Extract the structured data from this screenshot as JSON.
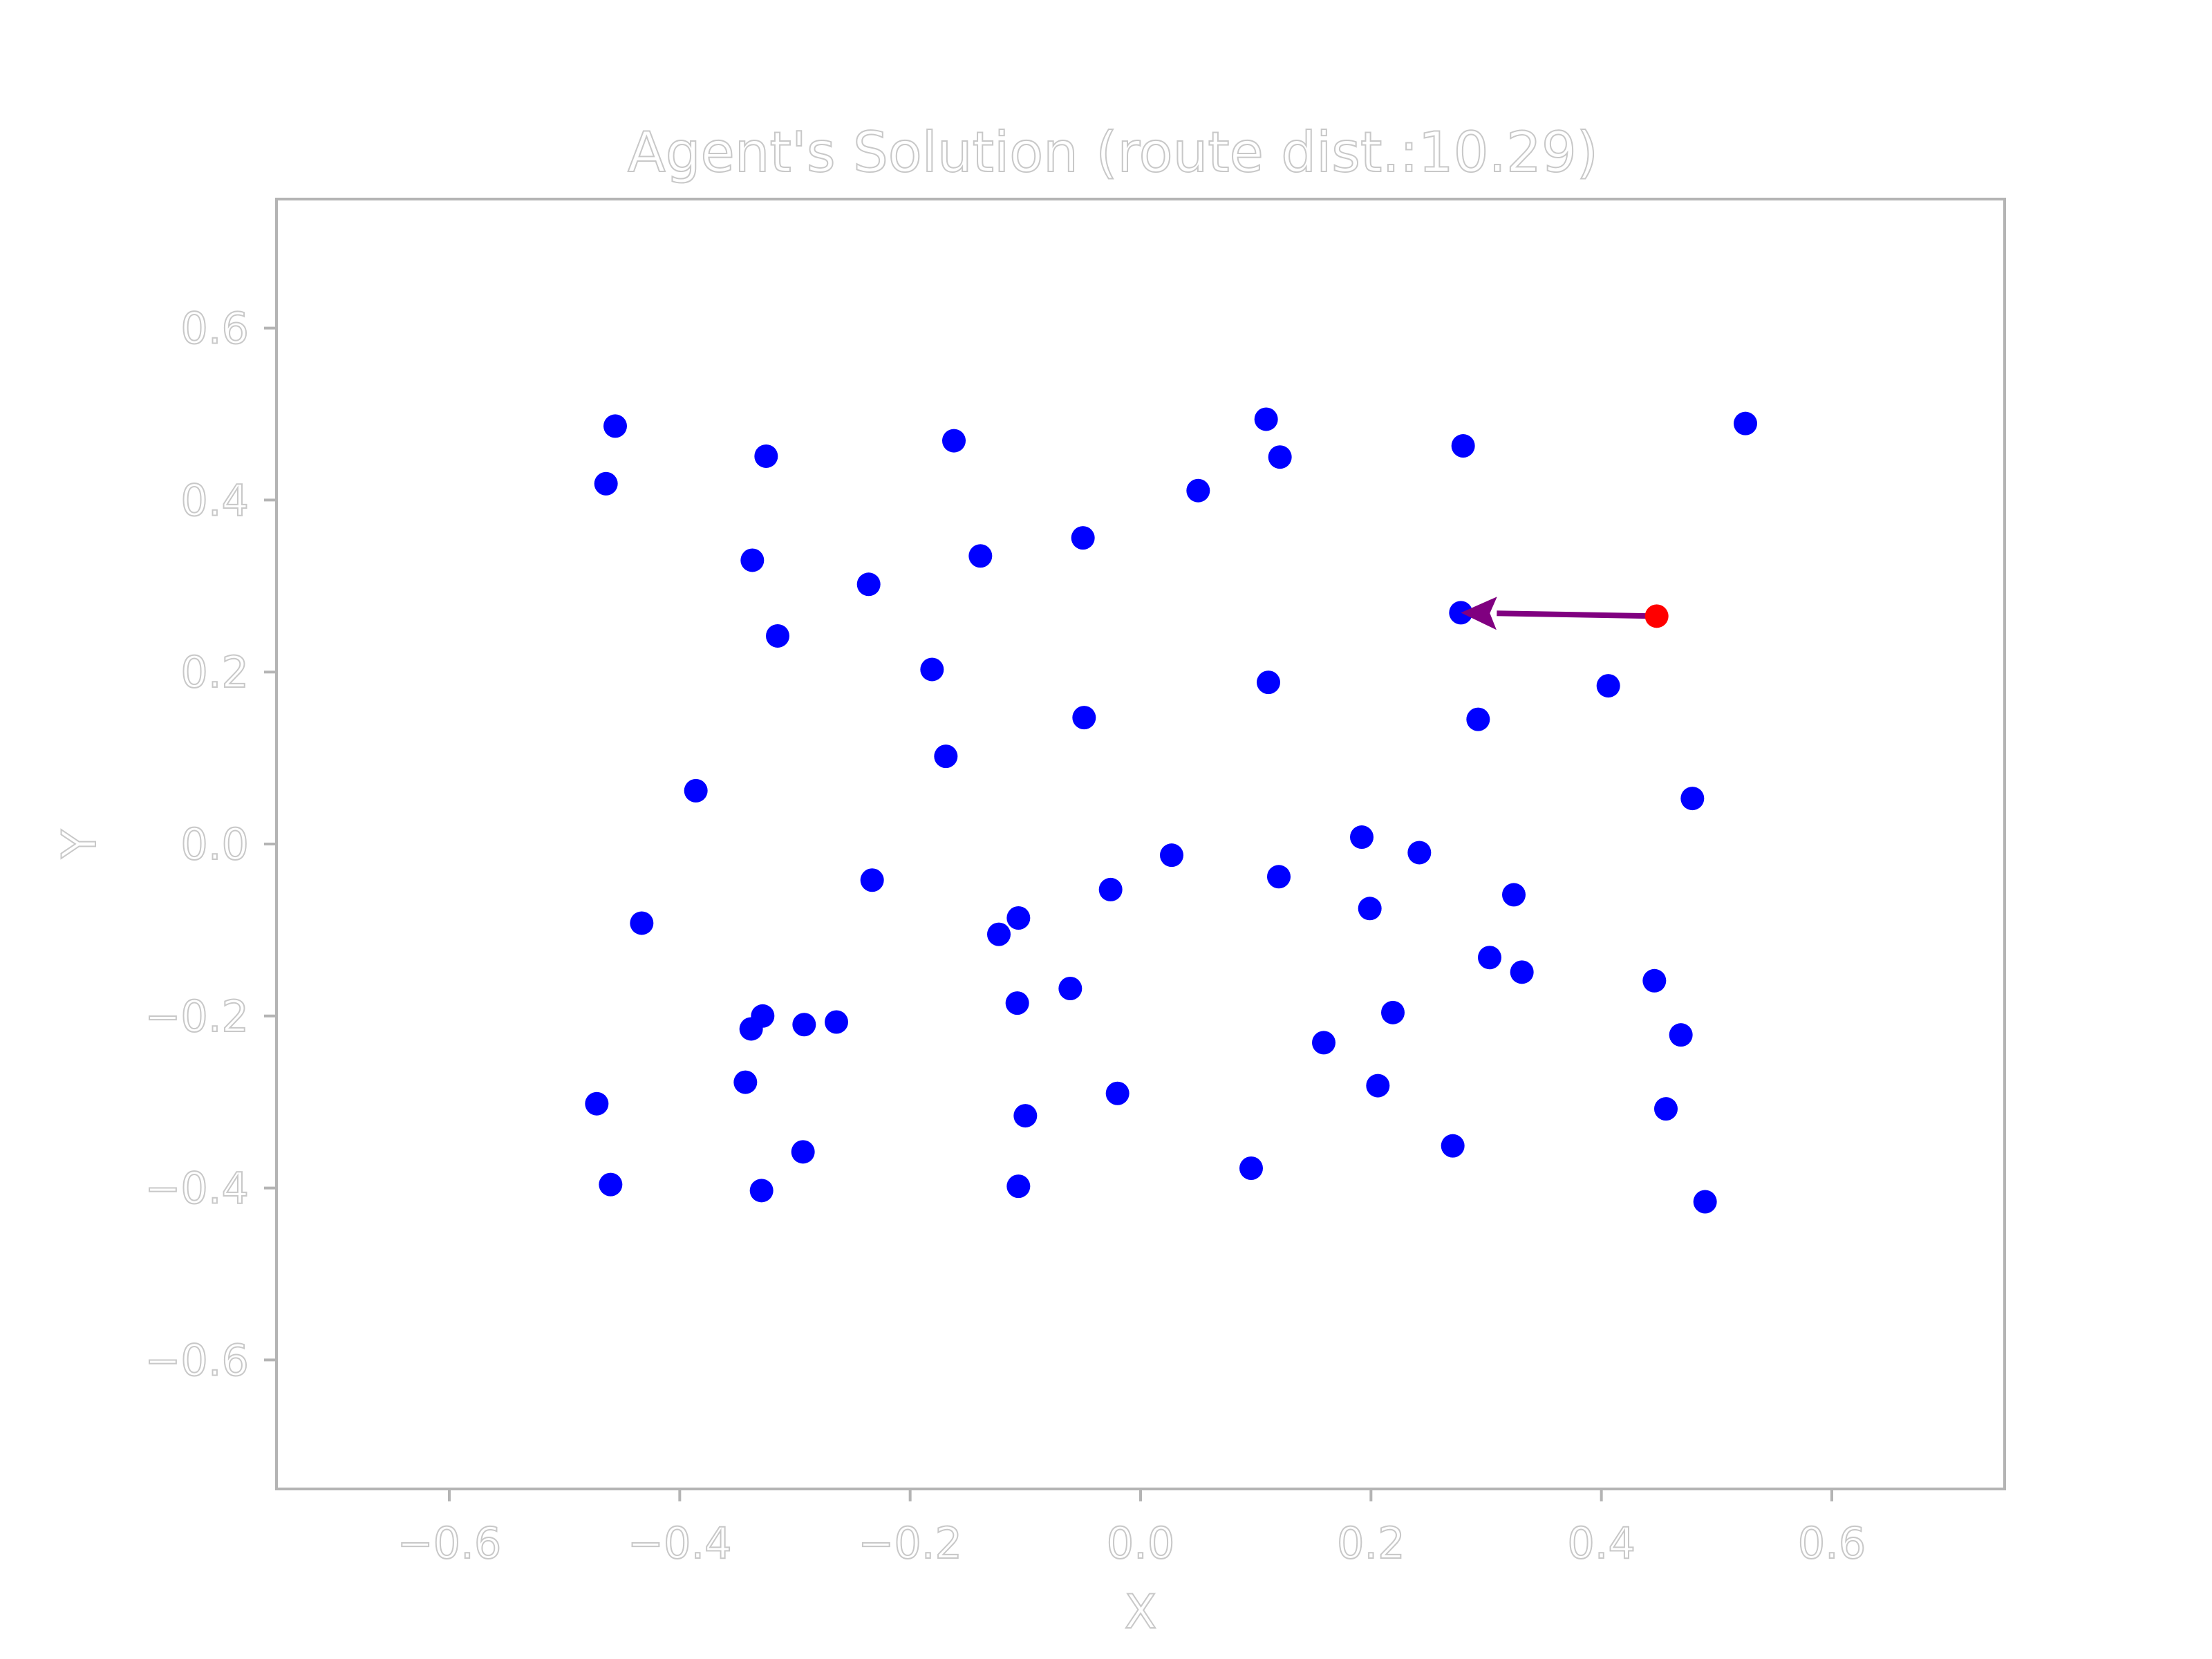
{
  "chart_data": {
    "type": "scatter",
    "title": "Agent's Solution (route dist.:10.29)",
    "xlabel": "X",
    "ylabel": "Y",
    "xlim": [
      -0.75,
      0.75
    ],
    "ylim": [
      -0.75,
      0.75
    ],
    "xticks": [
      "−0.6",
      "−0.4",
      "−0.2",
      "0.0",
      "0.2",
      "0.4",
      "0.6"
    ],
    "yticks": [
      "−0.6",
      "−0.4",
      "−0.2",
      "0.0",
      "0.2",
      "0.4",
      "0.6"
    ],
    "xtick_values": [
      -0.6,
      -0.4,
      -0.2,
      0.0,
      0.2,
      0.4,
      0.6
    ],
    "ytick_values": [
      -0.6,
      -0.4,
      -0.2,
      0.0,
      0.2,
      0.4,
      0.6
    ],
    "grid": false,
    "colors": {
      "points": "#0000ff",
      "start": "#ff0000",
      "route": "#800080",
      "axes": "#b4b4b4",
      "text_outline": "#c8c8c8"
    },
    "points": [
      {
        "x": -0.456,
        "y": 0.486
      },
      {
        "x": -0.464,
        "y": 0.419
      },
      {
        "x": -0.325,
        "y": 0.451
      },
      {
        "x": -0.337,
        "y": 0.33
      },
      {
        "x": -0.315,
        "y": 0.242
      },
      {
        "x": -0.162,
        "y": 0.469
      },
      {
        "x": -0.236,
        "y": 0.302
      },
      {
        "x": -0.139,
        "y": 0.335
      },
      {
        "x": -0.181,
        "y": 0.203
      },
      {
        "x": -0.169,
        "y": 0.102
      },
      {
        "x": -0.05,
        "y": 0.356
      },
      {
        "x": -0.049,
        "y": 0.147
      },
      {
        "x": 0.05,
        "y": 0.411
      },
      {
        "x": 0.109,
        "y": 0.494
      },
      {
        "x": 0.121,
        "y": 0.45
      },
      {
        "x": 0.111,
        "y": 0.188
      },
      {
        "x": 0.28,
        "y": 0.463
      },
      {
        "x": 0.278,
        "y": 0.269
      },
      {
        "x": 0.293,
        "y": 0.145
      },
      {
        "x": 0.406,
        "y": 0.184
      },
      {
        "x": 0.525,
        "y": 0.489
      },
      {
        "x": 0.479,
        "y": 0.053
      },
      {
        "x": -0.386,
        "y": 0.062
      },
      {
        "x": -0.433,
        "y": -0.092
      },
      {
        "x": -0.233,
        "y": -0.042
      },
      {
        "x": -0.472,
        "y": -0.302
      },
      {
        "x": -0.46,
        "y": -0.396
      },
      {
        "x": -0.343,
        "y": -0.277
      },
      {
        "x": -0.338,
        "y": -0.215
      },
      {
        "x": -0.328,
        "y": -0.2
      },
      {
        "x": -0.292,
        "y": -0.21
      },
      {
        "x": -0.264,
        "y": -0.207
      },
      {
        "x": -0.293,
        "y": -0.358
      },
      {
        "x": -0.329,
        "y": -0.403
      },
      {
        "x": -0.123,
        "y": -0.105
      },
      {
        "x": -0.106,
        "y": -0.086
      },
      {
        "x": -0.107,
        "y": -0.185
      },
      {
        "x": -0.061,
        "y": -0.168
      },
      {
        "x": -0.1,
        "y": -0.316
      },
      {
        "x": -0.106,
        "y": -0.398
      },
      {
        "x": -0.026,
        "y": -0.053
      },
      {
        "x": -0.02,
        "y": -0.29
      },
      {
        "x": 0.027,
        "y": -0.013
      },
      {
        "x": 0.12,
        "y": -0.038
      },
      {
        "x": 0.096,
        "y": -0.377
      },
      {
        "x": 0.159,
        "y": -0.231
      },
      {
        "x": 0.192,
        "y": 0.008
      },
      {
        "x": 0.199,
        "y": -0.075
      },
      {
        "x": 0.219,
        "y": -0.196
      },
      {
        "x": 0.206,
        "y": -0.281
      },
      {
        "x": 0.242,
        "y": -0.01
      },
      {
        "x": 0.271,
        "y": -0.351
      },
      {
        "x": 0.303,
        "y": -0.132
      },
      {
        "x": 0.324,
        "y": -0.059
      },
      {
        "x": 0.331,
        "y": -0.149
      },
      {
        "x": 0.446,
        "y": -0.159
      },
      {
        "x": 0.469,
        "y": -0.222
      },
      {
        "x": 0.456,
        "y": -0.308
      },
      {
        "x": 0.49,
        "y": -0.416
      }
    ],
    "start": {
      "x": 0.448,
      "y": 0.265
    },
    "route": [
      {
        "x": 0.448,
        "y": 0.265
      },
      {
        "x": 0.278,
        "y": 0.269
      }
    ]
  }
}
